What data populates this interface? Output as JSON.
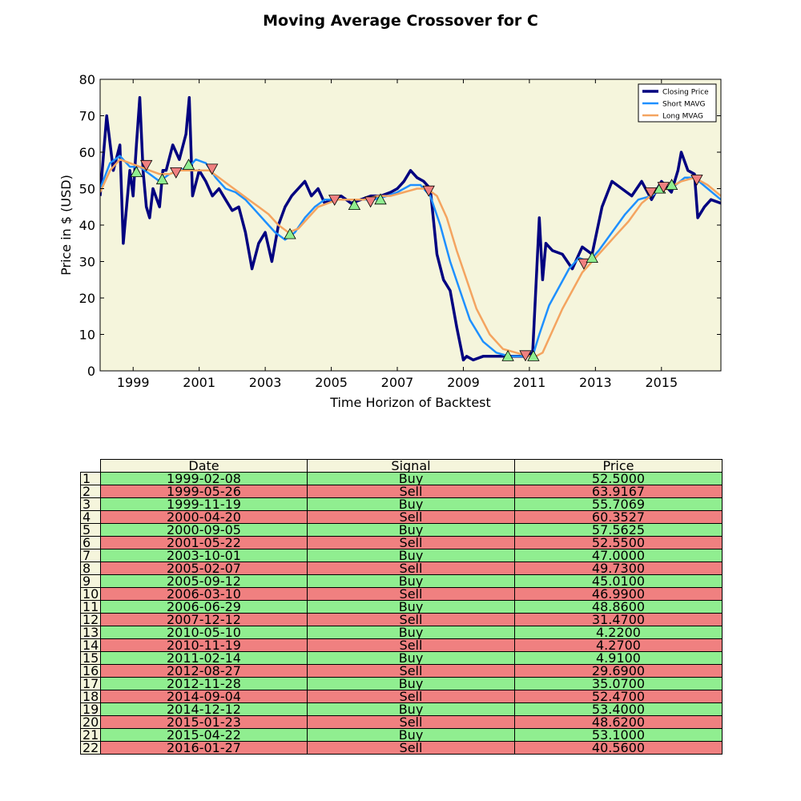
{
  "chart_data": {
    "type": "line",
    "title": "Moving Average Crossover for C",
    "xlabel": "Time Horizon of Backtest",
    "ylabel": "Price in $ (USD)",
    "xlim": [
      1998.0,
      2016.8
    ],
    "ylim": [
      0,
      80
    ],
    "xticks": [
      1999,
      2001,
      2003,
      2005,
      2007,
      2009,
      2011,
      2013,
      2015
    ],
    "yticks": [
      0,
      10,
      20,
      30,
      40,
      50,
      60,
      70,
      80
    ],
    "background": "#f5f5dc",
    "legend_position": "top-right",
    "series": [
      {
        "name": "Closing Price",
        "color": "#000080",
        "x": [
          1998.0,
          1998.2,
          1998.4,
          1998.6,
          1998.7,
          1998.9,
          1999.0,
          1999.1,
          1999.2,
          1999.3,
          1999.4,
          1999.5,
          1999.6,
          1999.8,
          1999.9,
          2000.0,
          2000.2,
          2000.4,
          2000.6,
          2000.7,
          2000.8,
          2001.0,
          2001.2,
          2001.4,
          2001.6,
          2001.8,
          2002.0,
          2002.2,
          2002.4,
          2002.6,
          2002.8,
          2003.0,
          2003.2,
          2003.4,
          2003.6,
          2003.8,
          2004.0,
          2004.2,
          2004.4,
          2004.6,
          2004.8,
          2005.0,
          2005.3,
          2005.6,
          2005.9,
          2006.2,
          2006.5,
          2006.8,
          2007.0,
          2007.2,
          2007.4,
          2007.6,
          2007.8,
          2008.0,
          2008.2,
          2008.4,
          2008.6,
          2008.8,
          2009.0,
          2009.1,
          2009.3,
          2009.6,
          2010.0,
          2010.4,
          2010.8,
          2011.1,
          2011.3,
          2011.4,
          2011.5,
          2011.7,
          2012.0,
          2012.3,
          2012.6,
          2012.9,
          2013.2,
          2013.5,
          2013.8,
          2014.1,
          2014.4,
          2014.7,
          2015.0,
          2015.3,
          2015.5,
          2015.6,
          2015.8,
          2016.0,
          2016.1,
          2016.3,
          2016.5,
          2016.8
        ],
        "y": [
          48,
          70,
          55,
          62,
          35,
          55,
          48,
          62,
          75,
          55,
          45,
          42,
          50,
          45,
          55,
          55,
          62,
          58,
          65,
          75,
          48,
          55,
          52,
          48,
          50,
          47,
          44,
          45,
          38,
          28,
          35,
          38,
          30,
          40,
          45,
          48,
          50,
          52,
          48,
          50,
          46,
          47,
          48,
          46,
          47,
          48,
          48,
          49,
          50,
          52,
          55,
          53,
          52,
          50,
          32,
          25,
          22,
          12,
          3,
          4,
          3,
          4,
          4,
          4,
          4,
          5,
          42,
          25,
          35,
          33,
          32,
          28,
          34,
          32,
          45,
          52,
          50,
          48,
          52,
          47,
          52,
          49,
          55,
          60,
          55,
          54,
          42,
          45,
          47,
          46
        ]
      },
      {
        "name": "Short MAVG",
        "color": "#1e90ff",
        "x": [
          1998.0,
          1998.3,
          1998.6,
          1998.9,
          1999.2,
          1999.5,
          1999.8,
          2000.1,
          2000.4,
          2000.7,
          2000.9,
          2001.2,
          2001.5,
          2001.8,
          2002.1,
          2002.4,
          2002.7,
          2003.0,
          2003.3,
          2003.6,
          2003.9,
          2004.2,
          2004.5,
          2004.8,
          2005.1,
          2005.5,
          2005.9,
          2006.3,
          2006.7,
          2007.0,
          2007.4,
          2007.7,
          2008.0,
          2008.3,
          2008.6,
          2008.9,
          2009.2,
          2009.6,
          2010.0,
          2010.4,
          2010.8,
          2011.1,
          2011.3,
          2011.6,
          2011.9,
          2012.2,
          2012.5,
          2012.8,
          2013.1,
          2013.5,
          2013.9,
          2014.3,
          2014.7,
          2015.0,
          2015.3,
          2015.7,
          2016.0,
          2016.4,
          2016.8
        ],
        "y": [
          50,
          57,
          59,
          56,
          56,
          54,
          52,
          54,
          55,
          56,
          58,
          57,
          53,
          50,
          49,
          47,
          44,
          41,
          38,
          36,
          38,
          42,
          45,
          47,
          47,
          47,
          47,
          47,
          48,
          49,
          51,
          51,
          48,
          40,
          30,
          22,
          14,
          8,
          5,
          4,
          4,
          4,
          10,
          18,
          23,
          28,
          31,
          30,
          33,
          38,
          43,
          47,
          48,
          50,
          50,
          53,
          53,
          50,
          47
        ]
      },
      {
        "name": "Long MVAG",
        "color": "#f4a460",
        "x": [
          1998.0,
          1998.3,
          1998.6,
          1998.9,
          1999.2,
          1999.5,
          1999.8,
          2000.1,
          2000.4,
          2000.7,
          2001.0,
          2001.3,
          2001.6,
          2001.9,
          2002.2,
          2002.5,
          2002.8,
          2003.1,
          2003.4,
          2003.7,
          2004.0,
          2004.3,
          2004.6,
          2004.9,
          2005.2,
          2005.6,
          2006.0,
          2006.4,
          2006.8,
          2007.2,
          2007.6,
          2007.9,
          2008.2,
          2008.5,
          2008.8,
          2009.1,
          2009.4,
          2009.8,
          2010.2,
          2010.6,
          2011.0,
          2011.2,
          2011.4,
          2011.7,
          2012.0,
          2012.3,
          2012.6,
          2012.9,
          2013.2,
          2013.6,
          2014.0,
          2014.4,
          2014.8,
          2015.2,
          2015.6,
          2016.0,
          2016.4,
          2016.8
        ],
        "y": [
          49,
          55,
          58,
          57,
          56,
          55,
          54,
          54,
          55,
          55,
          55,
          55,
          53,
          51,
          49,
          47,
          45,
          43,
          40,
          38,
          39,
          42,
          45,
          46,
          47,
          47,
          47,
          48,
          48,
          49,
          50,
          50,
          48,
          42,
          33,
          25,
          17,
          10,
          6,
          5,
          4,
          4,
          5,
          11,
          17,
          22,
          27,
          30,
          33,
          37,
          41,
          46,
          49,
          50,
          52,
          53,
          51,
          48
        ]
      }
    ],
    "markers": [
      {
        "type": "buy",
        "x": 1999.1,
        "y": 54.5
      },
      {
        "type": "sell",
        "x": 1999.4,
        "y": 56.5
      },
      {
        "type": "buy",
        "x": 1999.88,
        "y": 52.5
      },
      {
        "type": "sell",
        "x": 2000.3,
        "y": 54.5
      },
      {
        "type": "buy",
        "x": 2000.68,
        "y": 56.5
      },
      {
        "type": "sell",
        "x": 2001.39,
        "y": 55.5
      },
      {
        "type": "buy",
        "x": 2003.75,
        "y": 37.5
      },
      {
        "type": "sell",
        "x": 2005.1,
        "y": 47.0
      },
      {
        "type": "buy",
        "x": 2005.7,
        "y": 45.5
      },
      {
        "type": "sell",
        "x": 2006.19,
        "y": 46.5
      },
      {
        "type": "buy",
        "x": 2006.49,
        "y": 47.0
      },
      {
        "type": "sell",
        "x": 2007.95,
        "y": 49.5
      },
      {
        "type": "buy",
        "x": 2010.35,
        "y": 4.0
      },
      {
        "type": "sell",
        "x": 2010.88,
        "y": 4.3
      },
      {
        "type": "buy",
        "x": 2011.12,
        "y": 4.0
      },
      {
        "type": "sell",
        "x": 2012.65,
        "y": 29.5
      },
      {
        "type": "buy",
        "x": 2012.9,
        "y": 31.0
      },
      {
        "type": "sell",
        "x": 2014.68,
        "y": 49.0
      },
      {
        "type": "buy",
        "x": 2014.95,
        "y": 50.0
      },
      {
        "type": "sell",
        "x": 2015.06,
        "y": 50.5
      },
      {
        "type": "buy",
        "x": 2015.31,
        "y": 51.0
      },
      {
        "type": "sell",
        "x": 2016.07,
        "y": 52.5
      }
    ],
    "marker_colors": {
      "buy": "#90ee90",
      "sell": "#f08080"
    }
  },
  "table": {
    "headers": [
      "Date",
      "Signal",
      "Price"
    ],
    "header_color": "#f5f5dc",
    "buy_color": "#90ee90",
    "sell_color": "#f08080",
    "rows": [
      {
        "label": "1",
        "date": "1999-02-08",
        "signal": "Buy",
        "price": "52.5000"
      },
      {
        "label": "2",
        "date": "1999-05-26",
        "signal": "Sell",
        "price": "63.9167"
      },
      {
        "label": "3",
        "date": "1999-11-19",
        "signal": "Buy",
        "price": "55.7069"
      },
      {
        "label": "4",
        "date": "2000-04-20",
        "signal": "Sell",
        "price": "60.3527"
      },
      {
        "label": "5",
        "date": "2000-09-05",
        "signal": "Buy",
        "price": "57.5625"
      },
      {
        "label": "6",
        "date": "2001-05-22",
        "signal": "Sell",
        "price": "52.5500"
      },
      {
        "label": "7",
        "date": "2003-10-01",
        "signal": "Buy",
        "price": "47.0000"
      },
      {
        "label": "8",
        "date": "2005-02-07",
        "signal": "Sell",
        "price": "49.7300"
      },
      {
        "label": "9",
        "date": "2005-09-12",
        "signal": "Buy",
        "price": "45.0100"
      },
      {
        "label": "10",
        "date": "2006-03-10",
        "signal": "Sell",
        "price": "46.9900"
      },
      {
        "label": "11",
        "date": "2006-06-29",
        "signal": "Buy",
        "price": "48.8600"
      },
      {
        "label": "12",
        "date": "2007-12-12",
        "signal": "Sell",
        "price": "31.4700"
      },
      {
        "label": "13",
        "date": "2010-05-10",
        "signal": "Buy",
        "price": "4.2200"
      },
      {
        "label": "14",
        "date": "2010-11-19",
        "signal": "Sell",
        "price": "4.2700"
      },
      {
        "label": "15",
        "date": "2011-02-14",
        "signal": "Buy",
        "price": "4.9100"
      },
      {
        "label": "16",
        "date": "2012-08-27",
        "signal": "Sell",
        "price": "29.6900"
      },
      {
        "label": "17",
        "date": "2012-11-28",
        "signal": "Buy",
        "price": "35.0700"
      },
      {
        "label": "18",
        "date": "2014-09-04",
        "signal": "Sell",
        "price": "52.4700"
      },
      {
        "label": "19",
        "date": "2014-12-12",
        "signal": "Buy",
        "price": "53.4000"
      },
      {
        "label": "20",
        "date": "2015-01-23",
        "signal": "Sell",
        "price": "48.6200"
      },
      {
        "label": "21",
        "date": "2015-04-22",
        "signal": "Buy",
        "price": "53.1000"
      },
      {
        "label": "22",
        "date": "2016-01-27",
        "signal": "Sell",
        "price": "40.5600"
      }
    ]
  }
}
